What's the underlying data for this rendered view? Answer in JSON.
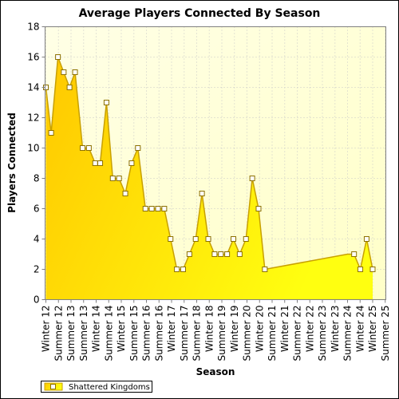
{
  "chart_data": {
    "type": "area",
    "title": "Average Players Connected By Season",
    "xlabel": "Season",
    "ylabel": "Players Connected",
    "ylim": [
      0,
      18
    ],
    "yticks": [
      0,
      2,
      4,
      6,
      8,
      10,
      12,
      14,
      16,
      18
    ],
    "grid": true,
    "legend_position": "bottom-left",
    "categories": [
      "Winter 12",
      "Summer 12",
      "Summer 13",
      "Summer 13",
      "Winter 14",
      "Summer 14",
      "Winter 15",
      "Summer 15",
      "Summer 16",
      "Summer 16",
      "Winter 17",
      "Summer 17",
      "Summer 18",
      "Winter 18",
      "Summer 19",
      "Winter 19",
      "Summer 20",
      "Winter 20",
      "Summer 21",
      "Winter 21",
      "Summer 22",
      "Winter 22",
      "Summer 23",
      "Winter 23",
      "Summer 24",
      "Winter 24",
      "Winter 25",
      "Summer 25"
    ],
    "series": [
      {
        "name": "Shattered Kingdoms",
        "color": "#FFE000",
        "points": [
          [
            0.0,
            14
          ],
          [
            0.42,
            11
          ],
          [
            0.96,
            16
          ],
          [
            1.42,
            15
          ],
          [
            1.88,
            14
          ],
          [
            2.32,
            15
          ],
          [
            2.92,
            10
          ],
          [
            3.42,
            10
          ],
          [
            3.92,
            9
          ],
          [
            4.32,
            9
          ],
          [
            4.82,
            13
          ],
          [
            5.32,
            8
          ],
          [
            5.82,
            8
          ],
          [
            6.32,
            7
          ],
          [
            6.82,
            9
          ],
          [
            7.32,
            10
          ],
          [
            7.92,
            6
          ],
          [
            8.42,
            6
          ],
          [
            8.92,
            6
          ],
          [
            9.42,
            6
          ],
          [
            9.92,
            4
          ],
          [
            10.42,
            2
          ],
          [
            10.92,
            2
          ],
          [
            11.42,
            3
          ],
          [
            11.92,
            4
          ],
          [
            12.42,
            7
          ],
          [
            12.92,
            4
          ],
          [
            13.42,
            3
          ],
          [
            13.92,
            3
          ],
          [
            14.42,
            3
          ],
          [
            14.92,
            4
          ],
          [
            15.42,
            3
          ],
          [
            15.92,
            4
          ],
          [
            16.42,
            8
          ],
          [
            16.92,
            6
          ],
          [
            17.42,
            2
          ],
          [
            24.0,
            3
          ],
          [
            24.52,
            3
          ],
          [
            25.02,
            2
          ],
          [
            25.52,
            4
          ],
          [
            26.0,
            2
          ]
        ]
      }
    ]
  },
  "colors": {
    "plot_top": "#FFFFE6",
    "plot_bottom": "#FFFFC8",
    "area_light": "#FFFF10",
    "area_dark": "#FFC800",
    "line": "#C8A000",
    "grid": "#C8C8C8"
  }
}
